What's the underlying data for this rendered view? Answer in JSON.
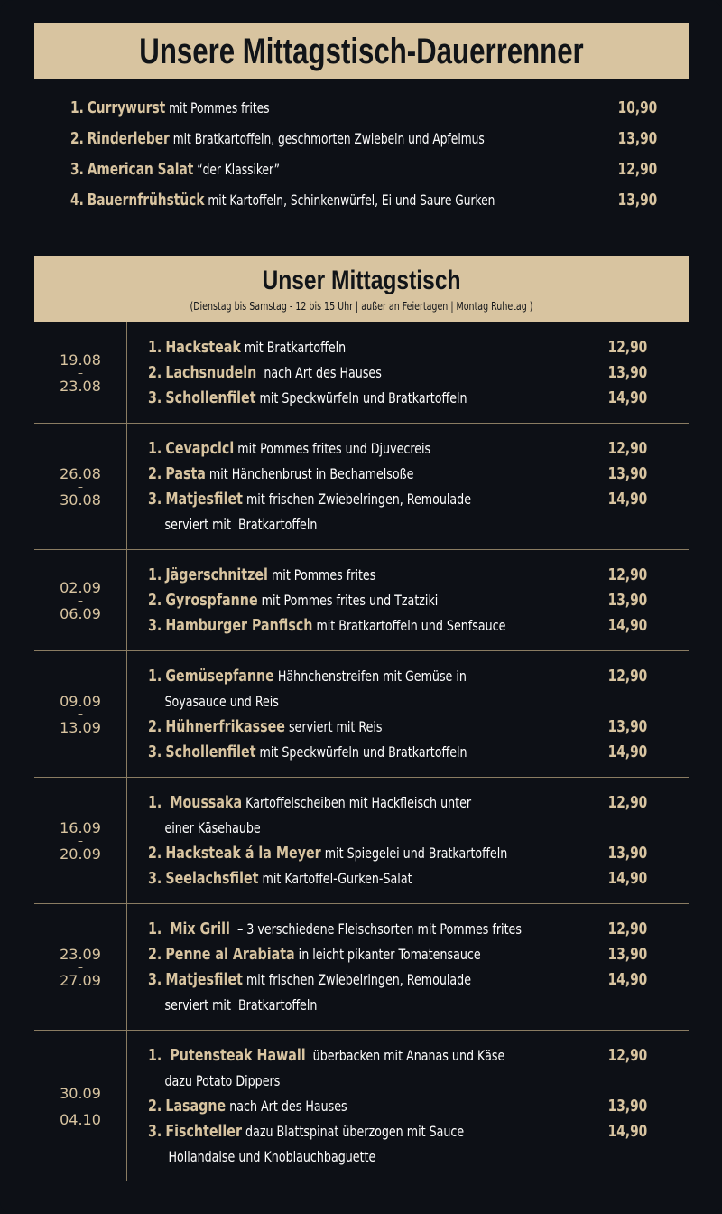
{
  "banner_classics": {
    "title": "Unsere Mittagstisch-Dauerrenner"
  },
  "classics": [
    {
      "num": "1.",
      "name": "Currywurst",
      "desc": " mit Pommes frites",
      "price": "10,90"
    },
    {
      "num": "2.",
      "name": "Rinderleber",
      "desc": " mit Bratkartoffeln, geschmorten Zwiebeln und Apfelmus",
      "price": "13,90"
    },
    {
      "num": "3.",
      "name": "American Salat",
      "desc": " “der Klassiker”",
      "price": "12,90"
    },
    {
      "num": "4.",
      "name": "Bauernfrühstück",
      "desc": " mit Kartoffeln, Schinkenwürfel, Ei und Saure Gurken",
      "price": "13,90"
    }
  ],
  "banner_lunch": {
    "title": "Unser Mittagstisch",
    "subtitle": "(Dienstag bis Samstag - 12 bis 15 Uhr  |  außer an Feiertagen  |  Montag Ruhetag )"
  },
  "weeks": [
    {
      "from": "19.08",
      "dash": "–",
      "to": "23.08",
      "items": [
        {
          "num": "1.",
          "name": "Hacksteak",
          "desc": " mit Bratkartoffeln",
          "cont": "",
          "price": "12,90"
        },
        {
          "num": "2.",
          "name": "Lachsnudeln",
          "desc": "  nach Art des Hauses",
          "cont": "",
          "price": "13,90"
        },
        {
          "num": "3.",
          "name": "Schollenfilet",
          "desc": " mit Speckwürfeln und Bratkartoffeln",
          "cont": "",
          "price": "14,90"
        }
      ]
    },
    {
      "from": "26.08",
      "dash": "–",
      "to": "30.08",
      "items": [
        {
          "num": "1.",
          "name": "Cevapcici",
          "desc": " mit Pommes frites und Djuvecreis",
          "cont": "",
          "price": "12,90"
        },
        {
          "num": "2.",
          "name": "Pasta",
          "desc": " mit Hänchenbrust in Bechamelsoße",
          "cont": "",
          "price": "13,90"
        },
        {
          "num": "3.",
          "name": "Matjesfilet",
          "desc": " mit frischen Zwiebelringen, Remoulade",
          "cont": "serviert mit  Bratkartoffeln",
          "price": "14,90"
        }
      ]
    },
    {
      "from": "02.09",
      "dash": "–",
      "to": "06.09",
      "items": [
        {
          "num": "1.",
          "name": "Jägerschnitzel",
          "desc": " mit Pommes frites",
          "cont": "",
          "price": "12,90"
        },
        {
          "num": "2.",
          "name": "Gyrospfanne",
          "desc": " mit Pommes frites und Tzatziki",
          "cont": "",
          "price": "13,90"
        },
        {
          "num": "3.",
          "name": "Hamburger Panfisch",
          "desc": " mit Bratkartoffeln und Senfsauce",
          "cont": "",
          "price": "14,90"
        }
      ]
    },
    {
      "from": "09.09",
      "dash": "–",
      "to": "13.09",
      "items": [
        {
          "num": "1.",
          "name": "Gemüsepfanne",
          "desc": " Hähnchenstreifen mit Gemüse in",
          "cont": "Soyasauce und Reis",
          "price": "12,90"
        },
        {
          "num": "2.",
          "name": "Hühnerfrikassee",
          "desc": " serviert mit Reis",
          "cont": "",
          "price": "13,90"
        },
        {
          "num": "3.",
          "name": "Schollenfilet",
          "desc": " mit Speckwürfeln und Bratkartoffeln",
          "cont": "",
          "price": "14,90"
        }
      ]
    },
    {
      "from": "16.09",
      "dash": "–",
      "to": "20.09",
      "items": [
        {
          "num": "1.",
          "name": " Moussaka",
          "desc": " Kartoffelscheiben mit Hackfleisch unter",
          "cont": "einer Käsehaube",
          "price": "12,90"
        },
        {
          "num": "2.",
          "name": "Hacksteak á la Meyer",
          "desc": " mit Spiegelei und Bratkartoffeln",
          "cont": "",
          "price": "13,90"
        },
        {
          "num": "3.",
          "name": "Seelachsfilet",
          "desc": " mit Kartoffel-Gurken-Salat",
          "cont": "",
          "price": "14,90"
        }
      ]
    },
    {
      "from": "23.09",
      "dash": "–",
      "to": "27.09",
      "items": [
        {
          "num": "1.",
          "name": " Mix Grill",
          "desc": "  – 3 verschiedene Fleischsorten mit Pommes frites",
          "cont": "",
          "price": "12,90"
        },
        {
          "num": "2.",
          "name": "Penne al Arabiata",
          "desc": " in leicht pikanter Tomatensauce",
          "cont": "",
          "price": "13,90"
        },
        {
          "num": "3.",
          "name": "Matjesfilet",
          "desc": " mit frischen Zwiebelringen, Remoulade",
          "cont": "serviert mit  Bratkartoffeln",
          "price": "14,90"
        }
      ]
    },
    {
      "from": "30.09",
      "dash": "–",
      "to": "04.10",
      "items": [
        {
          "num": "1.",
          "name": " Putensteak Hawaii",
          "desc": "  überbacken mit Ananas und Käse",
          "cont": "dazu Potato Dippers",
          "price": "12,90"
        },
        {
          "num": "2.",
          "name": "Lasagne",
          "desc": " nach Art des Hauses",
          "cont": "",
          "price": "13,90"
        },
        {
          "num": "3.",
          "name": "Fischteller",
          "desc": " dazu Blattspinat überzogen mit Sauce",
          "cont": " Hollandaise und Knoblauchbaguette",
          "price": "14,90"
        }
      ]
    }
  ]
}
